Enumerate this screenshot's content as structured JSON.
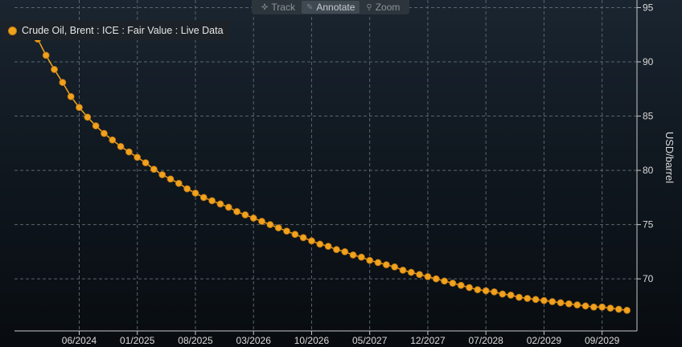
{
  "toolbar": {
    "items": [
      {
        "label": "Track",
        "icon": "crosshair-icon",
        "glyph": "✜",
        "active": false
      },
      {
        "label": "Annotate",
        "icon": "pencil-icon",
        "glyph": "✎",
        "active": true
      },
      {
        "label": "Zoom",
        "icon": "magnifier-icon",
        "glyph": "⚲",
        "active": false
      }
    ]
  },
  "legend": {
    "label": "Crude Oil, Brent : ICE : Fair Value : Live Data"
  },
  "colors": {
    "series": "#f0a21e",
    "grid": "#5a646d",
    "background": "#101820"
  },
  "chart_data": {
    "type": "line",
    "series": [
      {
        "name": "Crude Oil, Brent : ICE : Fair Value : Live Data",
        "x": [
          "2023-12",
          "2024-01",
          "2024-02",
          "2024-03",
          "2024-04",
          "2024-05",
          "2024-06",
          "2024-07",
          "2024-08",
          "2024-09",
          "2024-10",
          "2024-11",
          "2024-12",
          "2025-01",
          "2025-02",
          "2025-03",
          "2025-04",
          "2025-05",
          "2025-06",
          "2025-07",
          "2025-08",
          "2025-09",
          "2025-10",
          "2025-11",
          "2025-12",
          "2026-01",
          "2026-02",
          "2026-03",
          "2026-04",
          "2026-05",
          "2026-06",
          "2026-07",
          "2026-08",
          "2026-09",
          "2026-10",
          "2026-11",
          "2026-12",
          "2027-01",
          "2027-02",
          "2027-03",
          "2027-04",
          "2027-05",
          "2027-06",
          "2027-07",
          "2027-08",
          "2027-09",
          "2027-10",
          "2027-11",
          "2027-12",
          "2028-01",
          "2028-02",
          "2028-03",
          "2028-04",
          "2028-05",
          "2028-06",
          "2028-07",
          "2028-08",
          "2028-09",
          "2028-10",
          "2028-11",
          "2028-12",
          "2029-01",
          "2029-02",
          "2029-03",
          "2029-04",
          "2029-05",
          "2029-06",
          "2029-07",
          "2029-08",
          "2029-09",
          "2029-10",
          "2029-11",
          "2029-12"
        ],
        "values": [
          93.1,
          92.1,
          90.6,
          89.3,
          88.1,
          86.8,
          85.8,
          84.9,
          84.1,
          83.4,
          82.8,
          82.2,
          81.7,
          81.2,
          80.7,
          80.1,
          79.6,
          79.2,
          78.8,
          78.3,
          77.9,
          77.5,
          77.2,
          76.9,
          76.6,
          76.2,
          75.9,
          75.6,
          75.3,
          75.0,
          74.7,
          74.4,
          74.1,
          73.8,
          73.5,
          73.2,
          73.0,
          72.7,
          72.5,
          72.2,
          72.0,
          71.7,
          71.5,
          71.3,
          71.1,
          70.8,
          70.6,
          70.4,
          70.2,
          70.0,
          69.8,
          69.6,
          69.4,
          69.2,
          69.0,
          68.9,
          68.8,
          68.6,
          68.5,
          68.3,
          68.2,
          68.1,
          68.0,
          67.9,
          67.8,
          67.7,
          67.6,
          67.5,
          67.4,
          67.4,
          67.3,
          67.2,
          67.1
        ]
      }
    ],
    "x_ticks": [
      "06/2024",
      "01/2025",
      "08/2025",
      "03/2026",
      "10/2026",
      "05/2027",
      "12/2027",
      "07/2028",
      "02/2029",
      "09/2029"
    ],
    "y_ticks": [
      70,
      75,
      80,
      85,
      90,
      95
    ],
    "ylabel": "USD/barrel",
    "xlabel": "",
    "title": "",
    "ylim": [
      65.2,
      95.7
    ],
    "grid": "dashed",
    "legend_position": "top-left"
  }
}
